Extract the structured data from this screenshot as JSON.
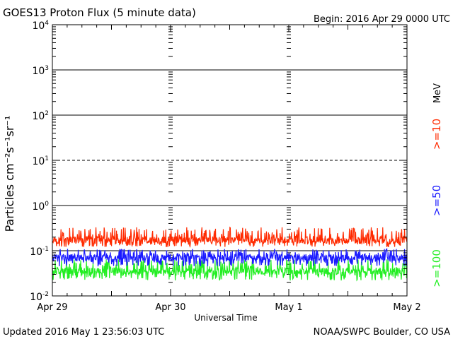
{
  "title": "GOES13 Proton Flux (5 minute data)",
  "begin": "Begin: 2016 Apr 29 0000 UTC",
  "updated": "Updated 2016 May  1 23:56:03 UTC",
  "credit": "NOAA/SWPC Boulder, CO USA",
  "colors": {
    "ge10": "#ff2a00",
    "ge50": "#1a1aff",
    "ge100": "#22ee22",
    "grid": "#000000"
  },
  "chart_data": {
    "type": "line",
    "title": "GOES13 Proton Flux (5 minute data)",
    "xlabel": "Universal Time",
    "ylabel": "Particles cm⁻²s⁻¹sr⁻¹",
    "y_scale": "log",
    "ylim": [
      0.01,
      10000
    ],
    "x_ticks": [
      "Apr 29",
      "Apr 30",
      "May 1",
      "May 2"
    ],
    "y_ticks": [
      {
        "base": "10",
        "exp": "-2"
      },
      {
        "base": "10",
        "exp": "-1"
      },
      {
        "base": "10",
        "exp": "0"
      },
      {
        "base": "10",
        "exp": "1"
      },
      {
        "base": "10",
        "exp": "2"
      },
      {
        "base": "10",
        "exp": "3"
      },
      {
        "base": "10",
        "exp": "4"
      }
    ],
    "right_labels": {
      "unit": "MeV",
      "ge10": ">=10",
      "ge50": ">=50",
      "ge100": ">=100"
    },
    "grid": true,
    "dashed_level": 10,
    "x_days": [
      0,
      1,
      2,
      3
    ],
    "series": [
      {
        "name": ">=10",
        "color": "#ff2a00",
        "base": 0.17,
        "low": 0.12,
        "high": 0.33
      },
      {
        "name": ">=50",
        "color": "#1a1aff",
        "base": 0.07,
        "low": 0.045,
        "high": 0.11
      },
      {
        "name": ">=100",
        "color": "#22ee22",
        "base": 0.035,
        "low": 0.022,
        "high": 0.065
      }
    ]
  }
}
